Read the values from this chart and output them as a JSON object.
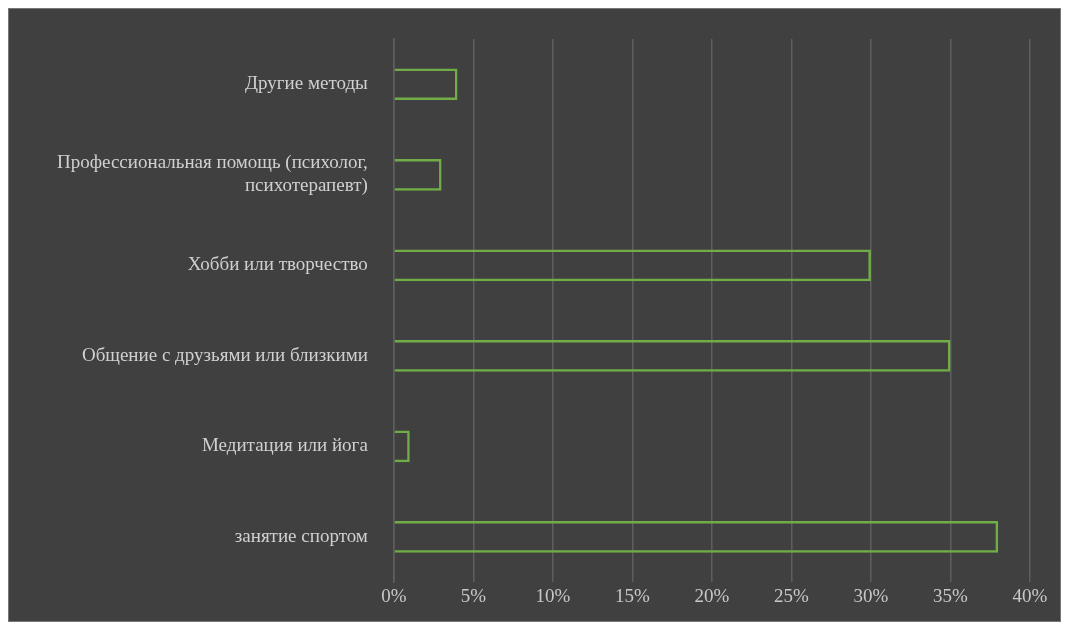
{
  "chart_data": {
    "type": "bar",
    "orientation": "horizontal",
    "categories": [
      "Другие методы",
      "Профессиональная помощь (психолог, психотерапевт)",
      "Хобби или творчество",
      "Общение с друзьями или близкими",
      "Медитация или йога",
      "занятие спортом"
    ],
    "values": [
      4,
      3,
      30,
      35,
      1,
      38
    ],
    "color": "#70ad47",
    "xlim": [
      0,
      40
    ],
    "xticks": [
      {
        "value": 0,
        "label": "0%"
      },
      {
        "value": 5,
        "label": "5%"
      },
      {
        "value": 10,
        "label": "10%"
      },
      {
        "value": 15,
        "label": "15%"
      },
      {
        "value": 20,
        "label": "20%"
      },
      {
        "value": 25,
        "label": "25%"
      },
      {
        "value": 30,
        "label": "30%"
      },
      {
        "value": 35,
        "label": "35%"
      },
      {
        "value": 40,
        "label": "40%"
      }
    ],
    "grid": "x",
    "legend": false
  }
}
